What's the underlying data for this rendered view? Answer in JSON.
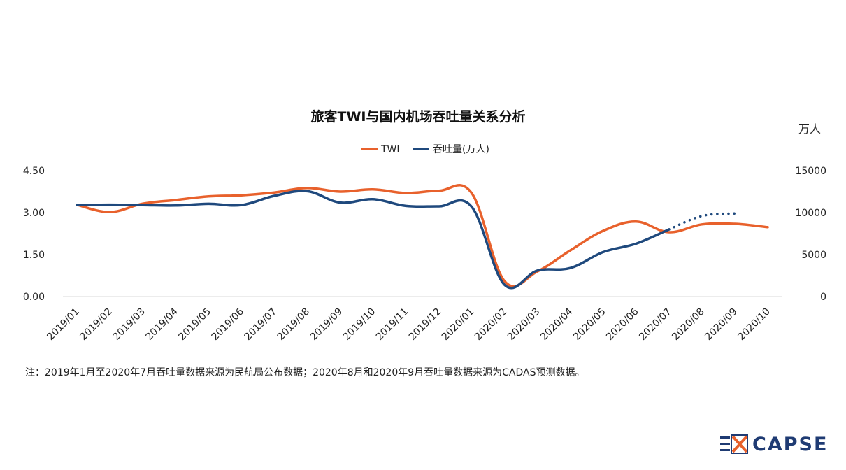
{
  "chart_data": {
    "type": "line",
    "title": "旅客TWI与国内机场吞吐量关系分析",
    "y2_unit": "万人",
    "categories": [
      "2019/01",
      "2019/02",
      "2019/03",
      "2019/04",
      "2019/05",
      "2019/06",
      "2019/07",
      "2019/08",
      "2019/09",
      "2019/10",
      "2019/11",
      "2019/12",
      "2020/01",
      "2020/02",
      "2020/03",
      "2020/04",
      "2020/05",
      "2020/06",
      "2020/07",
      "2020/08",
      "2020/09",
      "2020/10"
    ],
    "y_ticks": [
      "0.00",
      "1.50",
      "3.00",
      "4.50"
    ],
    "y2_ticks": [
      "0",
      "5000",
      "10000",
      "15000"
    ],
    "ylim": [
      0,
      4.5
    ],
    "y2lim": [
      0,
      15000
    ],
    "legend_position": "top-center",
    "series": [
      {
        "name": "TWI",
        "axis": "left",
        "color": "#e8612c",
        "values": [
          3.28,
          3.02,
          3.32,
          3.45,
          3.58,
          3.62,
          3.72,
          3.88,
          3.75,
          3.83,
          3.7,
          3.78,
          3.7,
          0.55,
          0.9,
          1.65,
          2.35,
          2.68,
          2.3,
          2.58,
          2.6,
          2.48
        ]
      },
      {
        "name": "吞吐量(万人)",
        "axis": "right",
        "color": "#1f497d",
        "values": [
          10900,
          10950,
          10900,
          10850,
          11050,
          10900,
          12000,
          12550,
          11200,
          11600,
          10800,
          10750,
          10700,
          1400,
          3100,
          3400,
          5300,
          6300,
          8000,
          null,
          null,
          null
        ],
        "forecast": {
          "style": "dotted",
          "categories": [
            "2020/07",
            "2020/08",
            "2020/09"
          ],
          "values": [
            8000,
            9600,
            9900
          ]
        }
      }
    ]
  },
  "note": "注：2019年1月至2020年7月吞吐量数据来源为民航局公布数据；2020年8月和2020年9月吞吐量数据来源为CADAS预测数据。",
  "logo": {
    "text": "CAPSE",
    "color": "#1f3b73",
    "accent": "#e8612c"
  }
}
